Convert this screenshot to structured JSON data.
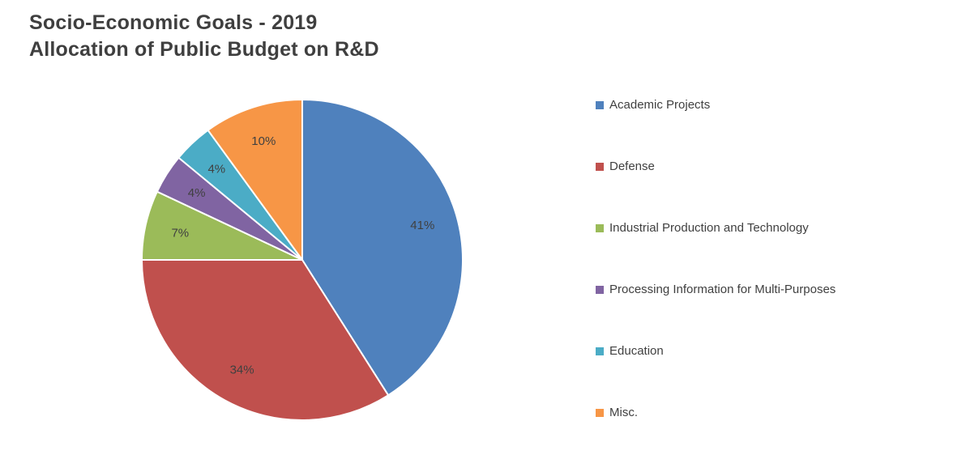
{
  "title": {
    "line1": "Socio-Economic Goals - 2019",
    "line2": "Allocation of Public Budget on R&D"
  },
  "chart_data": {
    "type": "pie",
    "title": "Socio-Economic Goals - 2019 Allocation of Public Budget on R&D",
    "start_angle_deg": 0,
    "direction": "clockwise",
    "legend_position": "right",
    "data_labels": "percent",
    "label_color": "#404040",
    "slices": [
      {
        "label": "Academic Projects",
        "value": 41,
        "percent_label": "41%",
        "color": "#4F81BD"
      },
      {
        "label": "Defense",
        "value": 34,
        "percent_label": "34%",
        "color": "#C0504D"
      },
      {
        "label": "Industrial Production and Technology",
        "value": 7,
        "percent_label": "7%",
        "color": "#9BBB59"
      },
      {
        "label": "Processing Information for Multi-Purposes",
        "value": 4,
        "percent_label": "4%",
        "color": "#8064A2"
      },
      {
        "label": "Education",
        "value": 4,
        "percent_label": "4%",
        "color": "#4BACC6"
      },
      {
        "label": "Misc.",
        "value": 10,
        "percent_label": "10%",
        "color": "#F79646"
      }
    ]
  }
}
